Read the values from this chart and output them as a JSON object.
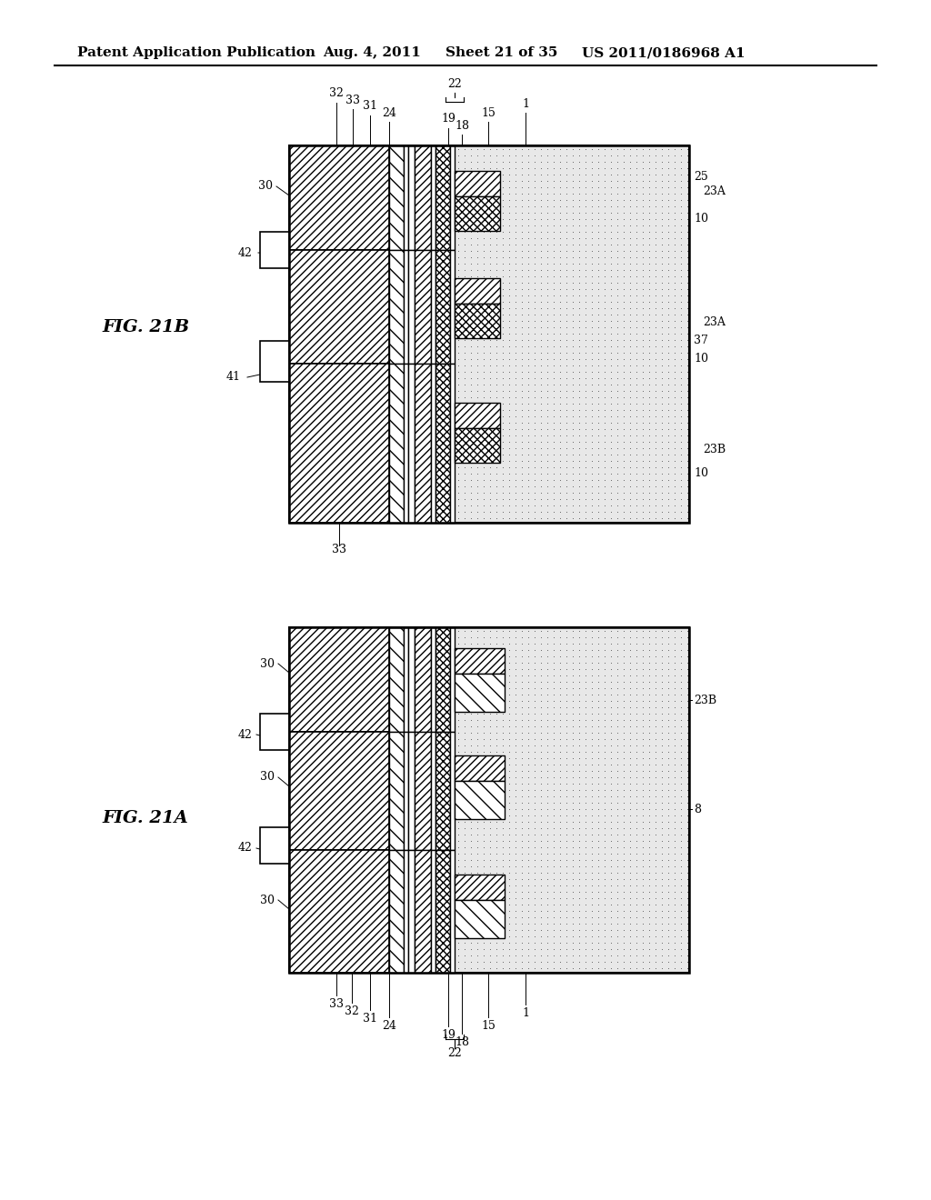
{
  "title": "Patent Application Publication",
  "date": "Aug. 4, 2011",
  "sheet": "Sheet 21 of 35",
  "patent_num": "US 2011/0186968 A1",
  "fig21b_label": "FIG. 21B",
  "fig21a_label": "FIG. 21A",
  "bg_color": "#ffffff",
  "line_color": "#000000",
  "header_fontsize": 11,
  "label_fontsize": 9,
  "fig_label_fontsize": 14
}
